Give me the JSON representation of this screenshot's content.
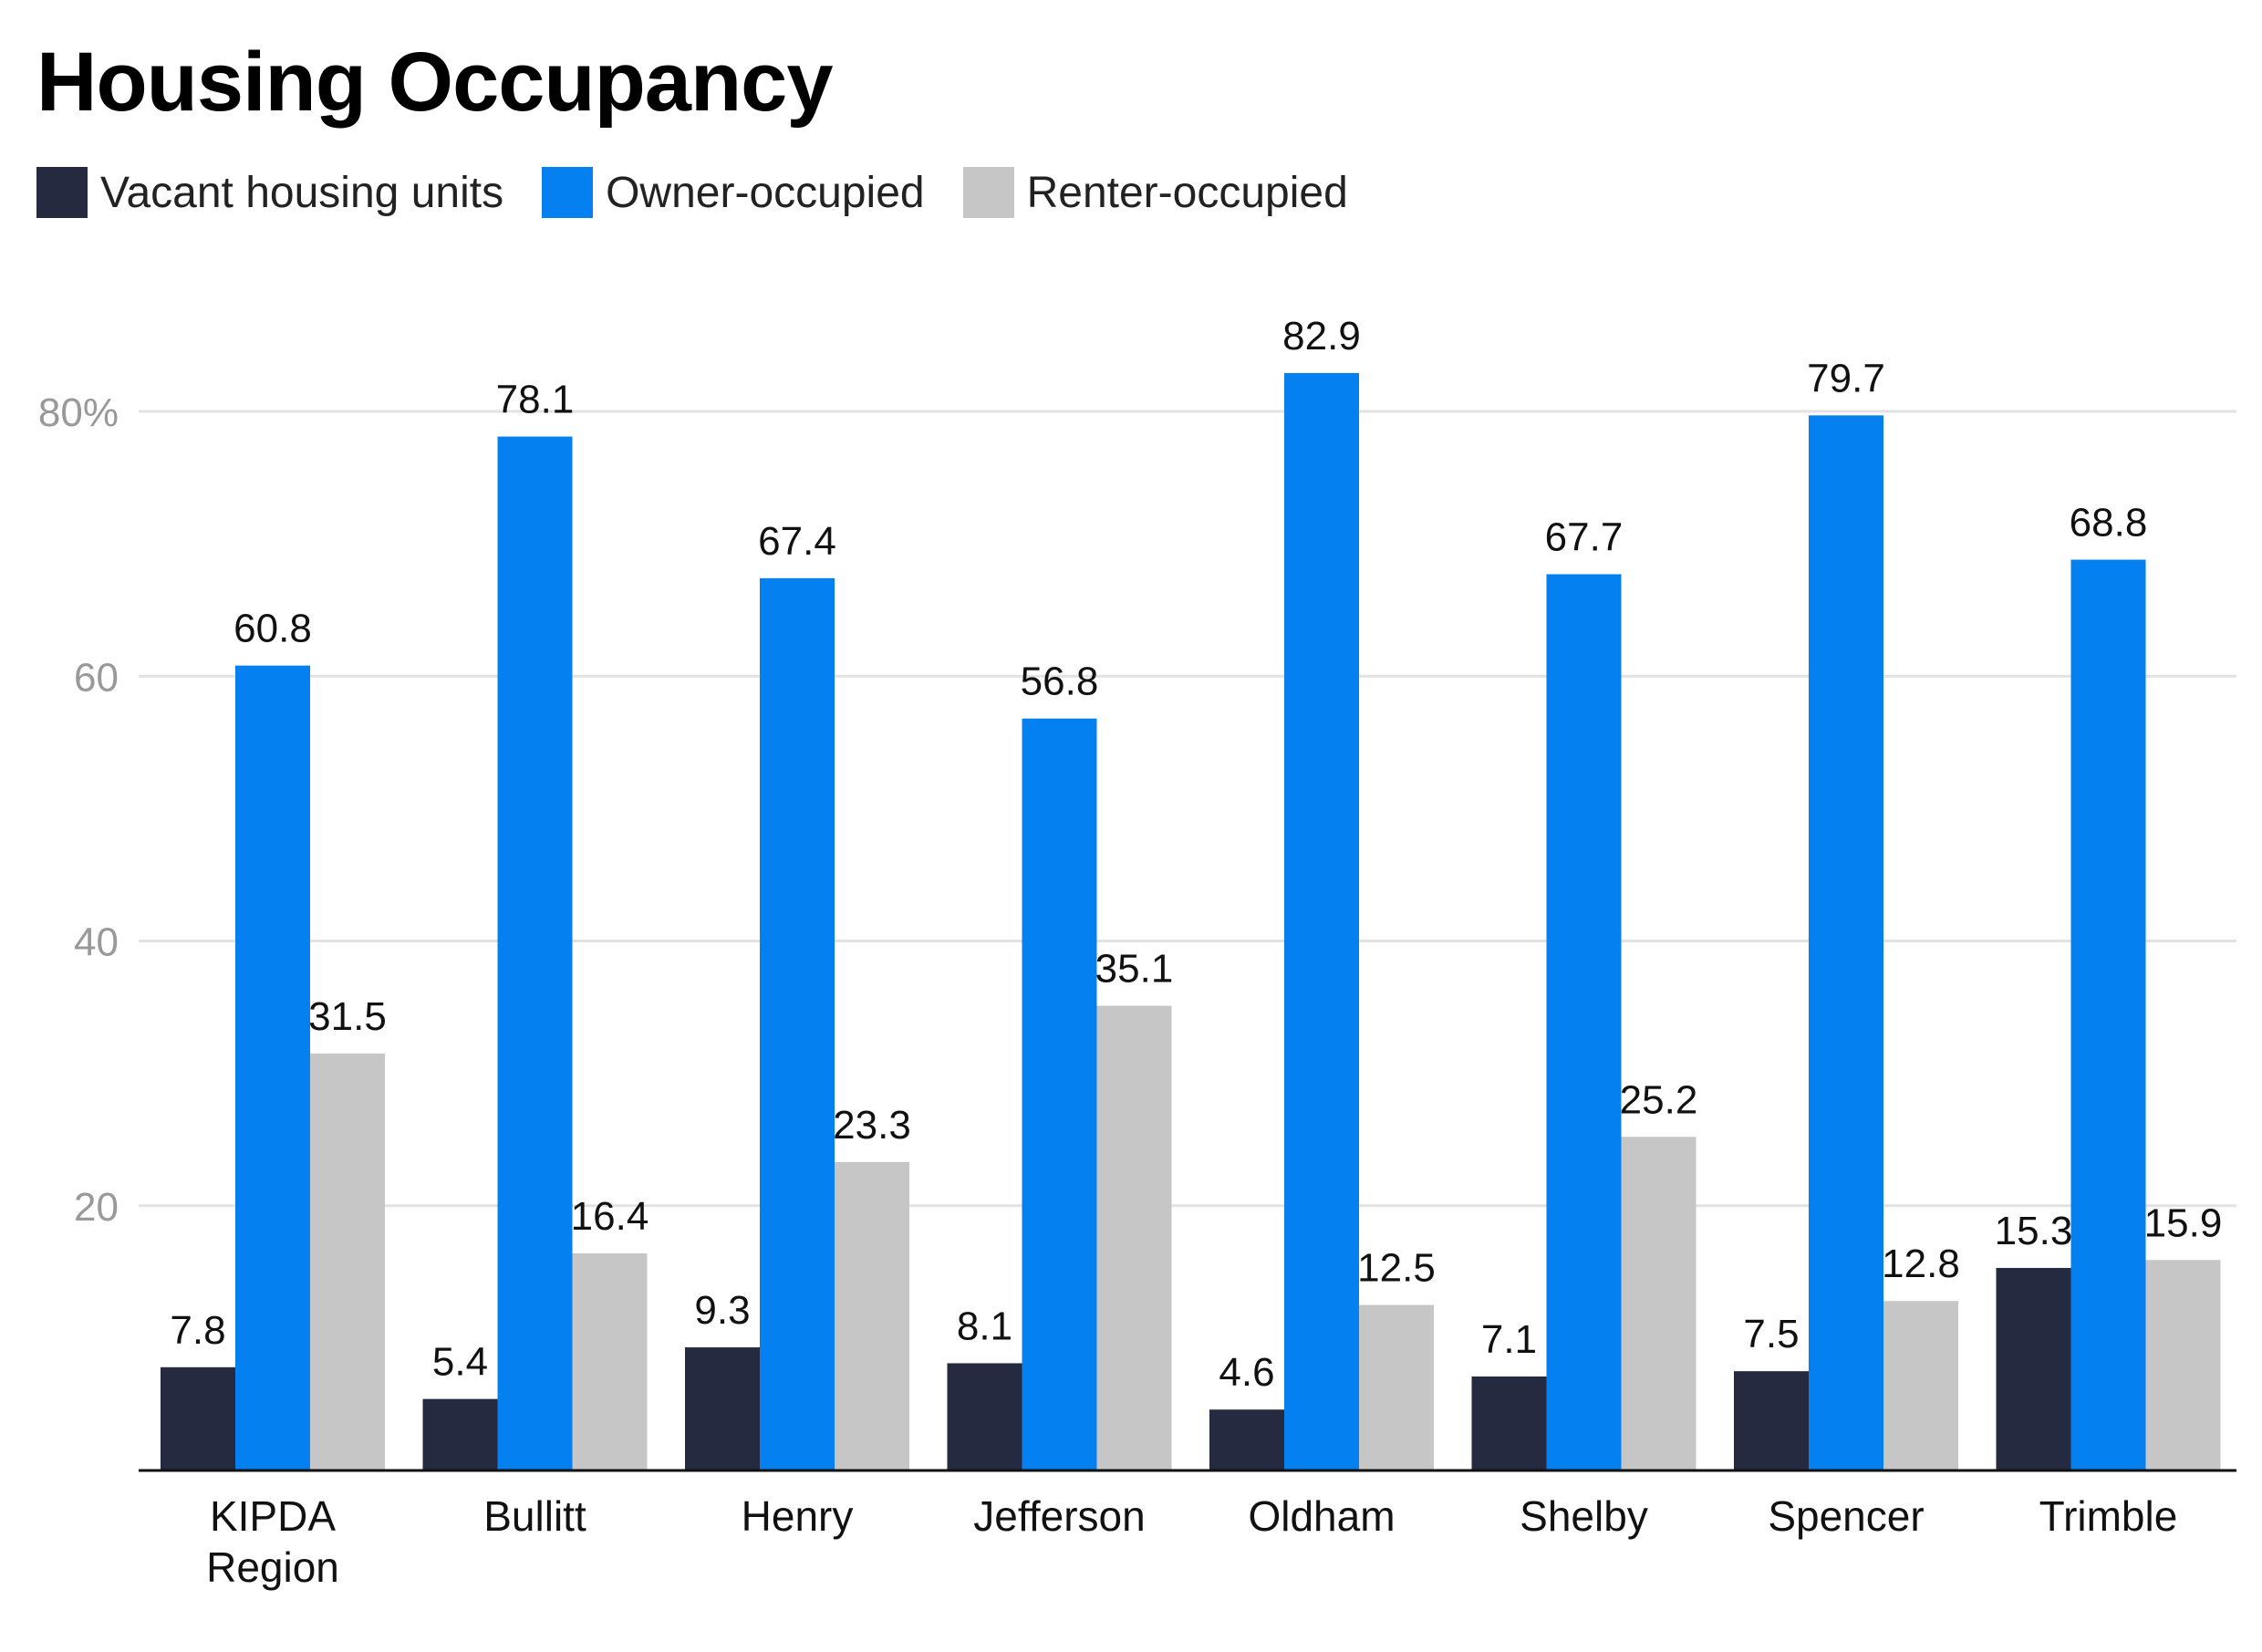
{
  "chart_data": {
    "type": "bar",
    "title": "Housing Occupancy",
    "categories": [
      [
        "KIPDA",
        "Region"
      ],
      [
        "Bullitt"
      ],
      [
        "Henry"
      ],
      [
        "Jefferson"
      ],
      [
        "Oldham"
      ],
      [
        "Shelby"
      ],
      [
        "Spencer"
      ],
      [
        "Trimble"
      ]
    ],
    "series": [
      {
        "name": "Vacant housing units",
        "color": "#252a40",
        "values": [
          7.8,
          5.4,
          9.3,
          8.1,
          4.6,
          7.1,
          7.5,
          15.3
        ],
        "labels": [
          "7.8",
          "5.4",
          "9.3",
          "8.1",
          "4.6",
          "7.1",
          "7.5",
          "15.3"
        ]
      },
      {
        "name": "Owner-occupied",
        "color": "#0580f0",
        "values": [
          60.8,
          78.1,
          67.4,
          56.8,
          82.9,
          67.7,
          79.7,
          68.8
        ],
        "labels": [
          "60.8",
          "78.1",
          "67.4",
          "56.8",
          "82.9",
          "67.7",
          "79.7",
          "68.8"
        ]
      },
      {
        "name": "Renter-occupied",
        "color": "#c6c6c6",
        "values": [
          31.5,
          16.4,
          23.3,
          35.1,
          12.5,
          25.2,
          12.8,
          15.9
        ],
        "labels": [
          "31.5",
          "16.4",
          "23.3",
          "35.1",
          "12.5",
          "25.2",
          "12.8",
          "15.9"
        ]
      }
    ],
    "yticks": [
      {
        "value": 20,
        "label": "20"
      },
      {
        "value": 40,
        "label": "40"
      },
      {
        "value": 60,
        "label": "60"
      },
      {
        "value": 80,
        "label": "80%"
      }
    ],
    "ylim": [
      0,
      90
    ],
    "grid": true,
    "legend_position": "top-left"
  }
}
